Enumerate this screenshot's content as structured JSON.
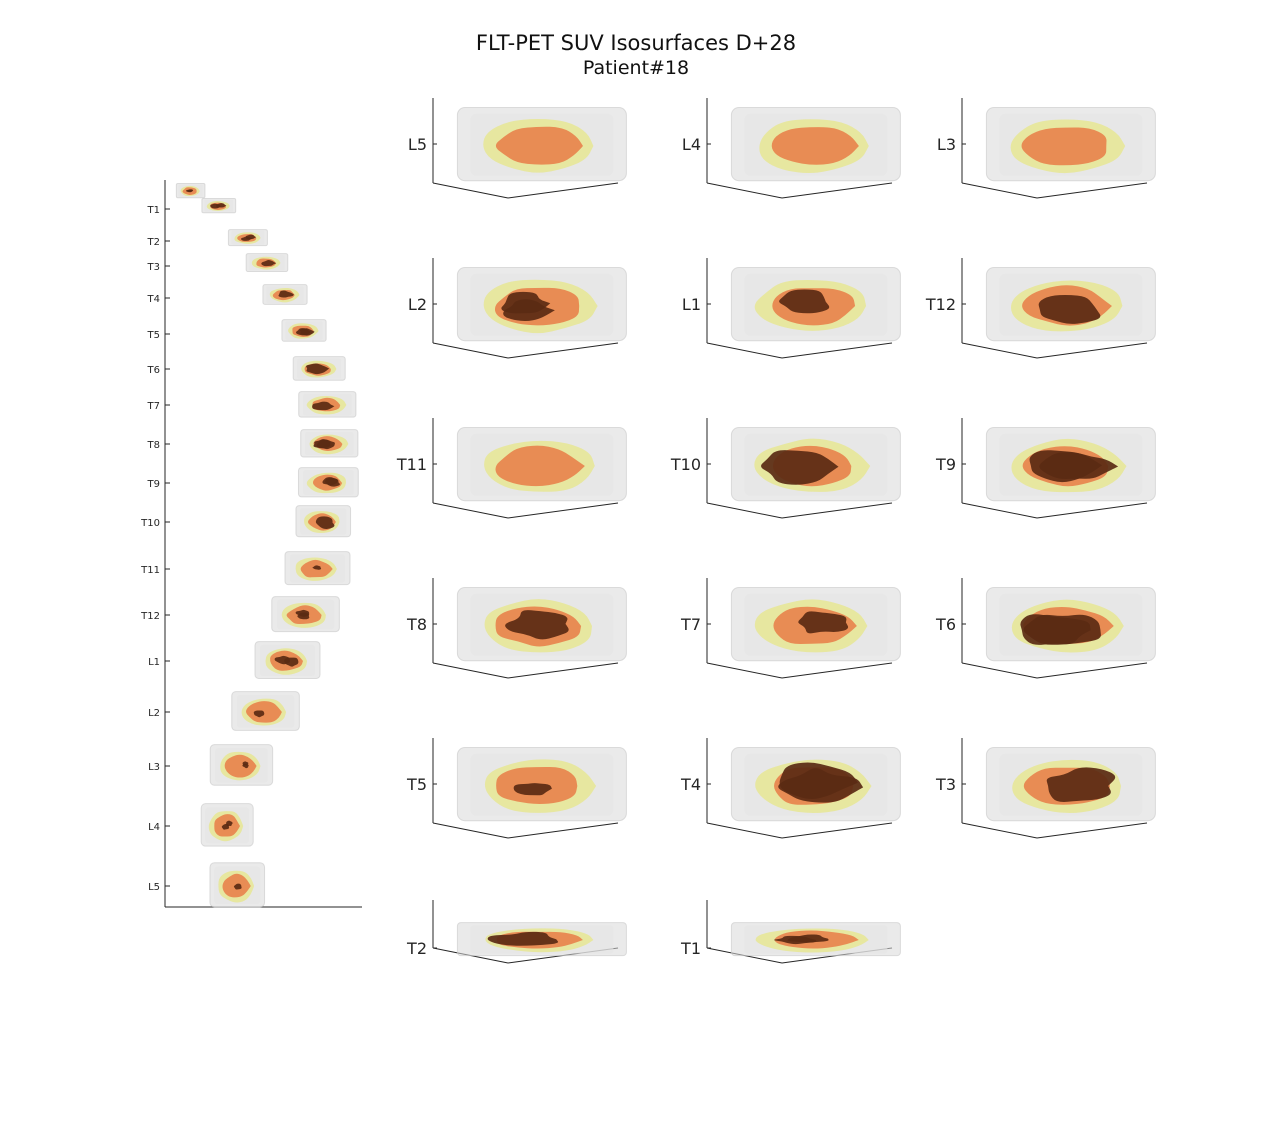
{
  "title": {
    "line1": "FLT-PET SUV Isosurfaces D+28",
    "line2": "Patient#18"
  },
  "colors": {
    "background": "#ffffff",
    "bone": "#d8d8d8",
    "low_suv": "#e6e67a",
    "mid_suv": "#e8723f",
    "high_suv": "#5a2a14",
    "axis": "#262626"
  },
  "chart_data": [
    {
      "type": "other",
      "subtype": "3d-isosurface-spine-overview",
      "ytick_labels": [
        "T1",
        "T2",
        "T3",
        "T4",
        "T5",
        "T6",
        "T7",
        "T8",
        "T9",
        "T10",
        "T11",
        "T12",
        "L1",
        "L2",
        "L3",
        "L4",
        "L5"
      ]
    },
    {
      "type": "other",
      "subtype": "3d-isosurface-grid",
      "panels": [
        {
          "label": "L5"
        },
        {
          "label": "L4"
        },
        {
          "label": "L3"
        },
        {
          "label": "L2"
        },
        {
          "label": "L1"
        },
        {
          "label": "T12"
        },
        {
          "label": "T11"
        },
        {
          "label": "T10"
        },
        {
          "label": "T9"
        },
        {
          "label": "T8"
        },
        {
          "label": "T7"
        },
        {
          "label": "T6"
        },
        {
          "label": "T5"
        },
        {
          "label": "T4"
        },
        {
          "label": "T3"
        },
        {
          "label": "T2"
        },
        {
          "label": "T1"
        }
      ]
    }
  ]
}
